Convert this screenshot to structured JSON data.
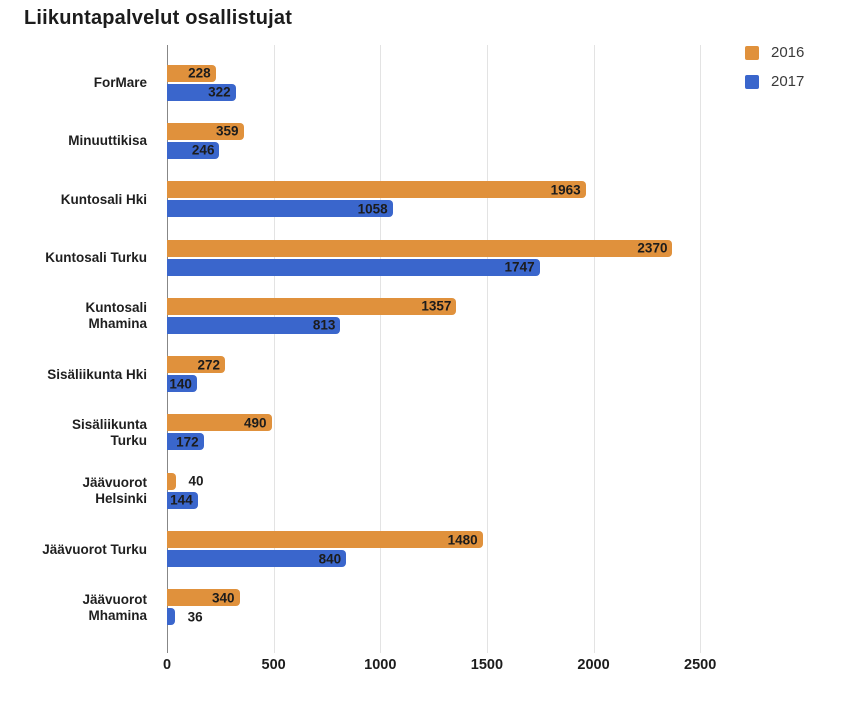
{
  "title": "Liikuntapalvelut osallistujat",
  "chart_data": {
    "type": "bar",
    "orientation": "horizontal",
    "title": "Liikuntapalvelut osallistujat",
    "categories": [
      "ForMare",
      "Minuuttikisa",
      "Kuntosali Hki",
      "Kuntosali Turku",
      "Kuntosali Mhamina",
      "Sisäliikunta Hki",
      "Sisäliikunta Turku",
      "Jäävuorot Helsinki",
      "Jäävuorot Turku",
      "Jäävuorot Mhamina"
    ],
    "category_lines": [
      [
        "ForMare"
      ],
      [
        "Minuuttikisa"
      ],
      [
        "Kuntosali Hki"
      ],
      [
        "Kuntosali Turku"
      ],
      [
        "Kuntosali",
        "Mhamina"
      ],
      [
        "Sisäliikunta Hki"
      ],
      [
        "Sisäliikunta",
        "Turku"
      ],
      [
        "Jäävuorot",
        "Helsinki"
      ],
      [
        "Jäävuorot Turku"
      ],
      [
        "Jäävuorot",
        "Mhamina"
      ]
    ],
    "series": [
      {
        "name": "2016",
        "color": "#E0913C",
        "values": [
          228,
          359,
          1963,
          2370,
          1357,
          272,
          490,
          40,
          1480,
          340
        ]
      },
      {
        "name": "2017",
        "color": "#3A66CC",
        "values": [
          322,
          246,
          1058,
          1747,
          813,
          140,
          172,
          144,
          840,
          36
        ]
      }
    ],
    "value_labels_shown": true,
    "x_ticks": [
      0,
      500,
      1000,
      1500,
      2000,
      2500
    ],
    "xlim": [
      0,
      3040
    ],
    "grid": true,
    "legend_position": "top-right",
    "colors": {
      "series_2016": "#E0913C",
      "series_2017": "#3A66CC",
      "gridline": "#e3e3e3",
      "axis": "#878787",
      "text": "#1c1c1c"
    }
  }
}
